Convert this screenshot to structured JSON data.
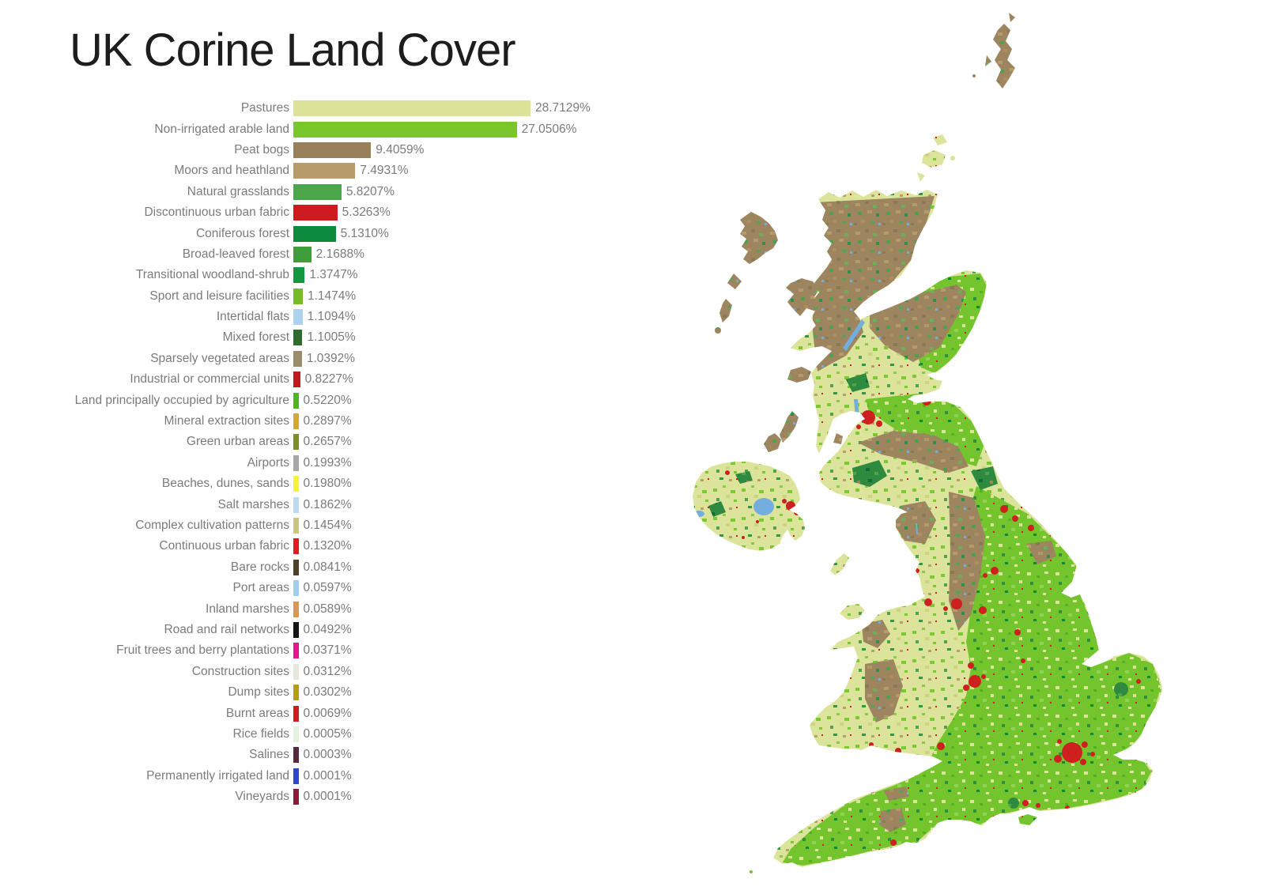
{
  "title": "UK Corine Land Cover",
  "chart_data": {
    "type": "bar",
    "orientation": "horizontal",
    "title": "UK Corine Land Cover",
    "xlim": [
      0,
      30
    ],
    "grid": false,
    "legend": "none",
    "value_label_position": "right-of-bar",
    "categories": [
      "Pastures",
      "Non-irrigated arable land",
      "Peat bogs",
      "Moors and heathland",
      "Natural grasslands",
      "Discontinuous urban fabric",
      "Coniferous forest",
      "Broad-leaved forest",
      "Transitional woodland-shrub",
      "Sport and leisure facilities",
      "Intertidal flats",
      "Mixed forest",
      "Sparsely vegetated areas",
      "Industrial or commercial units",
      "Land principally occupied by agriculture",
      "Mineral extraction sites",
      "Green urban areas",
      "Airports",
      "Beaches, dunes, sands",
      "Salt marshes",
      "Complex cultivation patterns",
      "Continuous urban fabric",
      "Bare rocks",
      "Port areas",
      "Inland marshes",
      "Road and rail networks",
      "Fruit trees and berry plantations",
      "Construction sites",
      "Dump sites",
      "Burnt areas",
      "Rice fields",
      "Salines",
      "Permanently irrigated land",
      "Vineyards"
    ],
    "values": [
      28.7129,
      27.0506,
      9.4059,
      7.4931,
      5.8207,
      5.3263,
      5.131,
      2.1688,
      1.3747,
      1.1474,
      1.1094,
      1.1005,
      1.0392,
      0.8227,
      0.522,
      0.2897,
      0.2657,
      0.1993,
      0.198,
      0.1862,
      0.1454,
      0.132,
      0.0841,
      0.0597,
      0.0589,
      0.0492,
      0.0371,
      0.0312,
      0.0302,
      0.0069,
      0.0005,
      0.0003,
      0.0001,
      0.0001
    ],
    "value_labels": [
      "28.7129%",
      "27.0506%",
      "9.4059%",
      "7.4931%",
      "5.8207%",
      "5.3263%",
      "5.1310%",
      "2.1688%",
      "1.3747%",
      "1.1474%",
      "1.1094%",
      "1.1005%",
      "1.0392%",
      "0.8227%",
      "0.5220%",
      "0.2897%",
      "0.2657%",
      "0.1993%",
      "0.1980%",
      "0.1862%",
      "0.1454%",
      "0.1320%",
      "0.0841%",
      "0.0597%",
      "0.0589%",
      "0.0492%",
      "0.0371%",
      "0.0312%",
      "0.0302%",
      "0.0069%",
      "0.0005%",
      "0.0003%",
      "0.0001%",
      "0.0001%"
    ],
    "colors": [
      "#dce398",
      "#79c72b",
      "#97805a",
      "#b89b6b",
      "#4ca64c",
      "#cf1b20",
      "#0c8a3e",
      "#3f9e3c",
      "#12993f",
      "#79ba27",
      "#abd3ee",
      "#2e6c2e",
      "#9d8c6c",
      "#bf1a1f",
      "#4cb71e",
      "#d2ab2b",
      "#7c8e24",
      "#a7a7a7",
      "#f6f23a",
      "#bddaf0",
      "#c9c779",
      "#e01b23",
      "#4c422a",
      "#a3cce8",
      "#d79a50",
      "#141414",
      "#e6148e",
      "#e8e6dc",
      "#b3a013",
      "#cf1d1f",
      "#e4f2df",
      "#562a3a",
      "#3144ce",
      "#8e1837"
    ]
  },
  "map": {
    "subject": "United Kingdom land cover raster map",
    "colors": {
      "pasture": "#dce49c",
      "arable": "#74c52d",
      "moor": "#9d8560",
      "heath": "#b59a6c",
      "forest": "#2f8f46",
      "urban": "#cf2020",
      "water": "#74aede"
    }
  }
}
